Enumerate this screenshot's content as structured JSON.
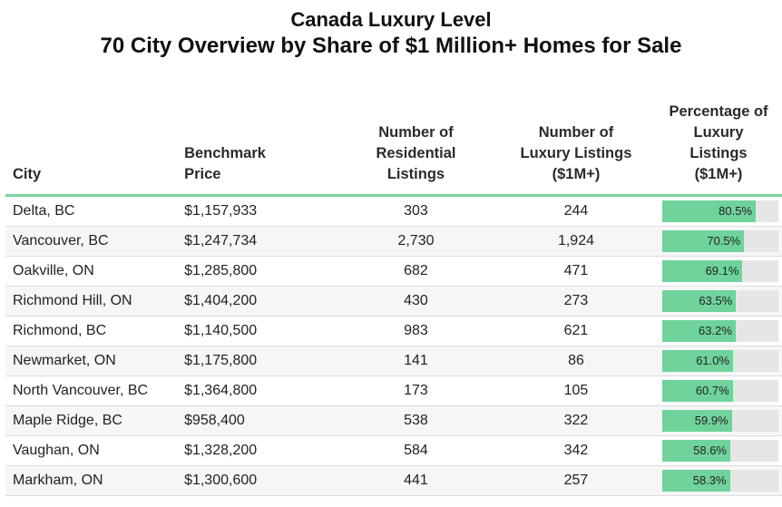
{
  "title_line1": "Canada Luxury Level",
  "title_line2": "70 City Overview by Share of $1 Million+ Homes for Sale",
  "colors": {
    "bar": "#6fd39b",
    "track": "#e6e6e6",
    "header_rule": "#7dd3a0"
  },
  "chart_data": {
    "type": "table",
    "columns": [
      "City",
      "Benchmark Price",
      "Number of Residential Listings",
      "Number of Luxury Listings ($1M+)",
      "Percentage of Luxury Listings ($1M+)"
    ],
    "rows": [
      {
        "city": "Delta, BC",
        "price": "$1,157,933",
        "residential": "303",
        "luxury": "244",
        "pct": 80.5,
        "pct_label": "80.5%"
      },
      {
        "city": "Vancouver, BC",
        "price": "$1,247,734",
        "residential": "2,730",
        "luxury": "1,924",
        "pct": 70.5,
        "pct_label": "70.5%"
      },
      {
        "city": "Oakville, ON",
        "price": "$1,285,800",
        "residential": "682",
        "luxury": "471",
        "pct": 69.1,
        "pct_label": "69.1%"
      },
      {
        "city": "Richmond Hill, ON",
        "price": "$1,404,200",
        "residential": "430",
        "luxury": "273",
        "pct": 63.5,
        "pct_label": "63.5%"
      },
      {
        "city": "Richmond, BC",
        "price": "$1,140,500",
        "residential": "983",
        "luxury": "621",
        "pct": 63.2,
        "pct_label": "63.2%"
      },
      {
        "city": "Newmarket, ON",
        "price": "$1,175,800",
        "residential": "141",
        "luxury": "86",
        "pct": 61.0,
        "pct_label": "61.0%"
      },
      {
        "city": "North Vancouver, BC",
        "price": "$1,364,800",
        "residential": "173",
        "luxury": "105",
        "pct": 60.7,
        "pct_label": "60.7%"
      },
      {
        "city": "Maple Ridge, BC",
        "price": "$958,400",
        "residential": "538",
        "luxury": "322",
        "pct": 59.9,
        "pct_label": "59.9%"
      },
      {
        "city": "Vaughan, ON",
        "price": "$1,328,200",
        "residential": "584",
        "luxury": "342",
        "pct": 58.6,
        "pct_label": "58.6%"
      },
      {
        "city": "Markham, ON",
        "price": "$1,300,600",
        "residential": "441",
        "luxury": "257",
        "pct": 58.3,
        "pct_label": "58.3%"
      }
    ],
    "bar_max": 100
  },
  "headers": {
    "city": [
      "City"
    ],
    "price": [
      "Benchmark",
      "Price"
    ],
    "residential": [
      "Number of",
      "Residential",
      "Listings"
    ],
    "luxury": [
      "Number of",
      "Luxury Listings",
      "($1M+)"
    ],
    "pct": [
      "Percentage of",
      "Luxury",
      "Listings",
      "($1M+)"
    ]
  }
}
